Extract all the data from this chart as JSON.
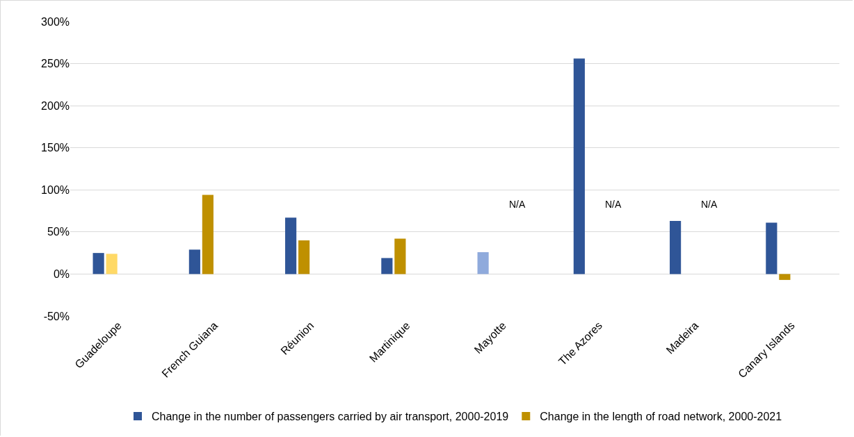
{
  "chart_data": {
    "type": "bar",
    "categories": [
      "Guadeloupe",
      "French Guiana",
      "Réunion",
      "Martinique",
      "Mayotte",
      "The Azores",
      "Madeira",
      "Canary Islands"
    ],
    "series": [
      {
        "name": "Change in the number of passengers carried by air transport, 2000-2019",
        "color": "#2f5597",
        "colors": [
          "#2f5597",
          "#2f5597",
          "#2f5597",
          "#2f5597",
          "#8faadc",
          "#2f5597",
          "#2f5597",
          "#2f5597"
        ],
        "values": [
          25,
          29,
          67,
          19,
          26,
          256,
          63,
          61
        ]
      },
      {
        "name": "Change in the length of road network, 2000-2021",
        "color": "#bf9000",
        "colors": [
          "#ffd966",
          "#bf9000",
          "#bf9000",
          "#bf9000",
          "#bf9000",
          "#bf9000",
          "#bf9000",
          "#bf9000"
        ],
        "values": [
          24,
          94,
          40,
          42,
          null,
          null,
          null,
          -7
        ],
        "value_labels": [
          null,
          null,
          null,
          null,
          "N/A",
          "N/A",
          "N/A",
          null
        ]
      }
    ],
    "ylim": [
      -50,
      300
    ],
    "yticks": [
      {
        "value": -50,
        "label": "-50%"
      },
      {
        "value": 0,
        "label": "0%"
      },
      {
        "value": 50,
        "label": "50%"
      },
      {
        "value": 100,
        "label": "100%"
      },
      {
        "value": 150,
        "label": "150%"
      },
      {
        "value": 200,
        "label": "200%"
      },
      {
        "value": 250,
        "label": "250%"
      },
      {
        "value": 300,
        "label": "300%"
      }
    ],
    "grid": "y",
    "legend": "bottom"
  }
}
